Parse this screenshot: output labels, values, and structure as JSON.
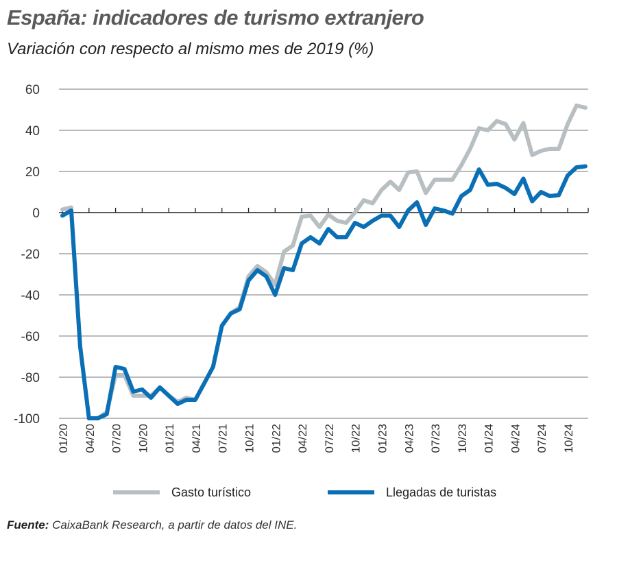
{
  "chart_data": {
    "type": "line",
    "title": "España: indicadores de turismo extranjero",
    "subtitle": "Variación con respecto al mismo mes de 2019 (%)",
    "xlabel": "",
    "ylabel": "",
    "ylim": [
      -100,
      60
    ],
    "yticks": [
      "60",
      "40",
      "20",
      "0",
      "-20",
      "-40",
      "-60",
      "-80",
      "-100"
    ],
    "ytick_values": [
      60,
      40,
      20,
      0,
      -20,
      -40,
      -60,
      -80,
      -100
    ],
    "xtick_labels": [
      "01/20",
      "04/20",
      "07/20",
      "10/20",
      "01/21",
      "04/21",
      "07/21",
      "10/21",
      "01/22",
      "04/22",
      "07/22",
      "10/22",
      "01/23",
      "04/23",
      "07/23",
      "10/23",
      "01/24",
      "04/24",
      "07/24",
      "10/24"
    ],
    "x_start": "01/2020",
    "x_months": 60,
    "grid": true,
    "legend_placement": "bottom",
    "series": [
      {
        "name": "Gasto turístico",
        "color": "#b8bfc2",
        "values": [
          1.5,
          2.5,
          -65,
          -100,
          -100,
          -97,
          -79,
          -79,
          -89,
          -89,
          -89,
          -85,
          -89,
          -92,
          -90,
          -91,
          -83,
          -75,
          -55,
          -49,
          -46,
          -31,
          -26,
          -29,
          -35,
          -19,
          -16,
          -2,
          -1.5,
          -7,
          -1,
          -4,
          -5,
          0,
          6,
          4.5,
          11,
          15,
          11,
          19.5,
          20,
          9.5,
          16,
          16,
          16,
          23,
          31,
          41,
          40,
          44.5,
          43,
          35.5,
          43.5,
          28,
          30,
          31,
          31,
          43,
          52,
          51
        ]
      },
      {
        "name": "Llegadas de turistas",
        "color": "#0a6fb5",
        "values": [
          -1.5,
          1,
          -65,
          -100,
          -100,
          -98,
          -75,
          -76,
          -87,
          -86,
          -90,
          -85,
          -89,
          -93,
          -91,
          -91,
          -83,
          -75,
          -55,
          -49,
          -47,
          -33,
          -28,
          -31,
          -40,
          -27,
          -28,
          -15,
          -12,
          -15,
          -8,
          -12,
          -12,
          -5,
          -7,
          -4,
          -1.5,
          -1.5,
          -7,
          1,
          5,
          -6,
          2,
          1,
          -0.5,
          8,
          11,
          21,
          13.5,
          14,
          12,
          9,
          16.5,
          5.5,
          10,
          8,
          8.5,
          18,
          22,
          22.5
        ]
      }
    ]
  },
  "source": {
    "label": "Fuente:",
    "text": " CaixaBank Research, a partir de datos del INE."
  }
}
